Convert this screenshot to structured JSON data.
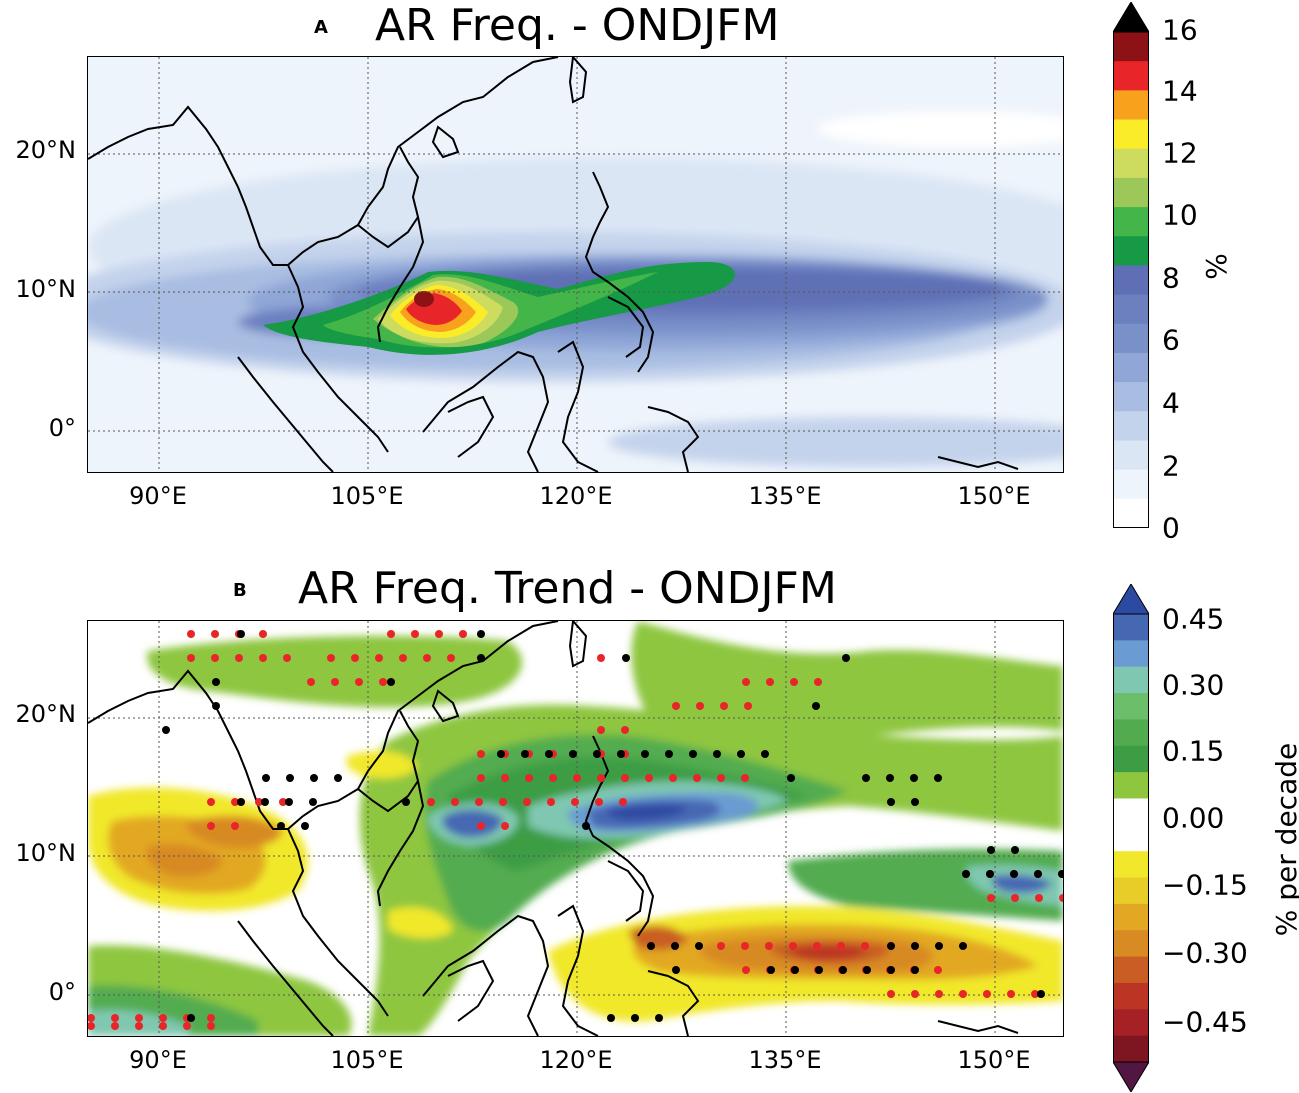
{
  "panel_a": {
    "letter": "A",
    "title": "AR Freq. - ONDJFM",
    "x_ticks": [
      "90°E",
      "105°E",
      "120°E",
      "135°E",
      "150°E"
    ],
    "y_ticks": [
      "20°N",
      "10°N",
      "0°"
    ],
    "colorbar": {
      "label": "%",
      "ticks": [
        "16",
        "14",
        "12",
        "10",
        "8",
        "6",
        "4",
        "2",
        "0"
      ],
      "colors": [
        "#ffffff",
        "#eef4fb",
        "#dbe6f5",
        "#c4d3ec",
        "#a9bde2",
        "#8fa6d7",
        "#7990c9",
        "#6c80c0",
        "#5e6fb5",
        "#169a45",
        "#44b649",
        "#9cc85a",
        "#cddc5e",
        "#fbec2a",
        "#f8a11d",
        "#e8262a",
        "#8d1215",
        "#000000"
      ],
      "extend_max": true
    },
    "chart_data": {
      "type": "heatmap",
      "title": "AR Freq. - ONDJFM",
      "x_ticks": [
        90,
        105,
        120,
        135,
        150
      ],
      "y_ticks": [
        20,
        10,
        0
      ],
      "xlim": [
        84.5,
        155.5
      ],
      "ylim": [
        -3,
        27
      ],
      "levels": [
        0,
        1,
        2,
        3,
        4,
        5,
        6,
        6.5,
        7,
        8,
        9,
        10,
        11,
        12,
        13,
        14,
        15,
        16
      ],
      "max_center": {
        "lon": 109,
        "lat": 9.5,
        "value": 16
      },
      "colorbar_label": "%"
    }
  },
  "panel_b": {
    "letter": "B",
    "title": "AR Freq. Trend - ONDJFM",
    "x_ticks": [
      "90°E",
      "105°E",
      "120°E",
      "135°E",
      "150°E"
    ],
    "y_ticks": [
      "20°N",
      "10°N",
      "0°"
    ],
    "colorbar": {
      "label": "% per decade",
      "ticks": [
        "0.45",
        "0.30",
        "0.15",
        "0.00",
        "−0.15",
        "−0.30",
        "−0.45"
      ],
      "colors": [
        "#2d4aa3",
        "#4668b3",
        "#6a9bd2",
        "#7fc7b0",
        "#6cbe6a",
        "#52ac4f",
        "#3c9d44",
        "#8ec640",
        "#ffffff",
        "#ffffff",
        "#f1e82c",
        "#e8cc28",
        "#e2a824",
        "#d88a23",
        "#c95e24",
        "#bb3424",
        "#a52126",
        "#7e1622",
        "#521642"
      ],
      "extend_both": true
    },
    "chart_data": {
      "type": "heatmap",
      "title": "AR Freq. Trend - ONDJFM",
      "x_ticks": [
        90,
        105,
        120,
        135,
        150
      ],
      "y_ticks": [
        20,
        10,
        0
      ],
      "xlim": [
        84.5,
        155.5
      ],
      "ylim": [
        -3,
        27
      ],
      "range": [
        -0.5,
        0.5
      ],
      "colorbar_label": "% per decade",
      "significance_markers": [
        "red dots",
        "black dots"
      ]
    }
  }
}
